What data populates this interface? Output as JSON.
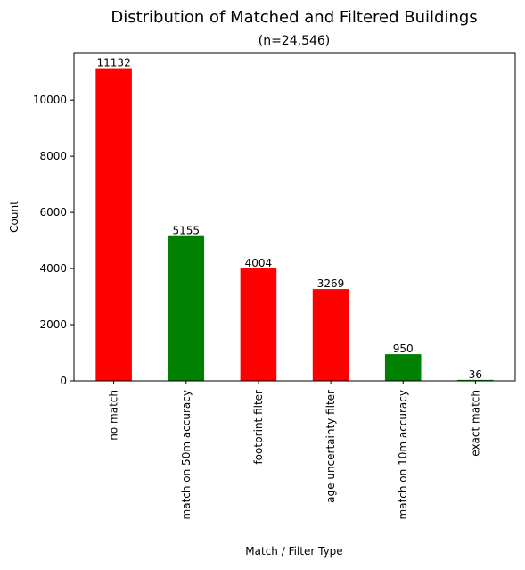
{
  "chart_data": {
    "type": "bar",
    "title": "Distribution of Matched and Filtered Buildings",
    "subtitle": "(n=24,546)",
    "xlabel": "Match / Filter Type",
    "ylabel": "Count",
    "ylim": [
      0,
      11690
    ],
    "yticks": [
      0,
      2000,
      4000,
      6000,
      8000,
      10000
    ],
    "grid": false,
    "categories": [
      "no match",
      "match on 50m accuracy",
      "footprint filter",
      "age uncertainty filter",
      "match on 10m accuracy",
      "exact match"
    ],
    "values": [
      11132,
      5155,
      4004,
      3269,
      950,
      36
    ],
    "data_labels": [
      "11132",
      "5155",
      "4004",
      "3269",
      "950",
      "36"
    ],
    "bar_colors": [
      "#ff0000",
      "#008000",
      "#ff0000",
      "#ff0000",
      "#008000",
      "#008000"
    ]
  }
}
